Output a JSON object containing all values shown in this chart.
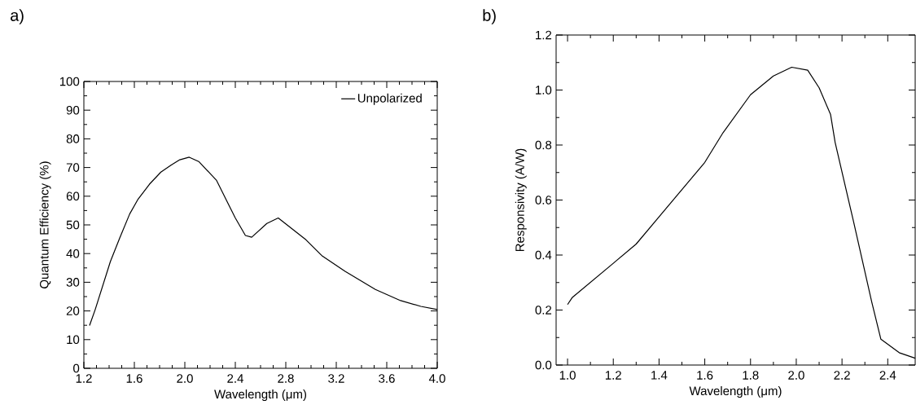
{
  "chart_data": [
    {
      "type": "line",
      "xlabel": "Wavelength (μm)",
      "ylabel": "Quantum Efficiency (%)",
      "annotations": [
        "a)"
      ],
      "legend": "top right",
      "xlim": [
        1.2,
        4.0
      ],
      "ylim": [
        0,
        100
      ],
      "xticks": [
        {
          "value": 1.2,
          "label": "1.2"
        },
        {
          "value": 1.6,
          "label": "1.6"
        },
        {
          "value": 2.0,
          "label": "2.0"
        },
        {
          "value": 2.4,
          "label": "2.4"
        },
        {
          "value": 2.8,
          "label": "2.8"
        },
        {
          "value": 3.2,
          "label": "3.2"
        },
        {
          "value": 3.6,
          "label": "3.6"
        },
        {
          "value": 4.0,
          "label": "4.0"
        }
      ],
      "yticks": [
        0,
        10,
        20,
        30,
        40,
        50,
        60,
        70,
        80,
        90,
        100
      ],
      "series": [
        {
          "name": "Unpolarized",
          "color": "#000000",
          "x": [
            1.245,
            1.29,
            1.41,
            1.485,
            1.563,
            1.63,
            1.72,
            1.81,
            1.89,
            1.96,
            2.035,
            2.11,
            2.25,
            2.4,
            2.48,
            2.53,
            2.65,
            2.74,
            2.96,
            3.09,
            3.27,
            3.51,
            3.71,
            3.87,
            4.0
          ],
          "values": [
            14.9,
            20.5,
            37.2,
            45.5,
            53.8,
            59,
            64.2,
            68.4,
            70.8,
            72.7,
            73.6,
            72.1,
            65.6,
            52.4,
            46.3,
            45.7,
            50.5,
            52.4,
            44.8,
            39.1,
            33.8,
            27.5,
            23.6,
            21.6,
            20.5
          ]
        }
      ]
    },
    {
      "type": "line",
      "xlabel": "Wavelength (μm)",
      "ylabel": "Responsivity (A/W)",
      "annotations": [
        "b)"
      ],
      "xlim": [
        0.95,
        2.52
      ],
      "ylim": [
        0,
        1.2
      ],
      "xticks": [
        {
          "value": 1.0,
          "label": "1.0"
        },
        {
          "value": 1.2,
          "label": "1.2"
        },
        {
          "value": 1.4,
          "label": "1.4"
        },
        {
          "value": 1.6,
          "label": "1.6"
        },
        {
          "value": 1.8,
          "label": "1.8"
        },
        {
          "value": 2.0,
          "label": "2.0"
        },
        {
          "value": 2.2,
          "label": "2.2"
        },
        {
          "value": 2.4,
          "label": "2.4"
        }
      ],
      "yticks": [
        {
          "value": 0,
          "label": "0.0"
        },
        {
          "value": 0.2,
          "label": "0.2"
        },
        {
          "value": 0.4,
          "label": "0.4"
        },
        {
          "value": 0.6,
          "label": "0.6"
        },
        {
          "value": 0.8,
          "label": "0.8"
        },
        {
          "value": 1.0,
          "label": "1.0"
        },
        {
          "value": 1.2,
          "label": "1.2"
        }
      ],
      "series": [
        {
          "color": "#000000",
          "x": [
            1.0,
            1.02,
            1.2,
            1.3,
            1.394,
            1.6,
            1.68,
            1.8,
            1.9,
            1.98,
            2.05,
            2.1,
            2.15,
            2.17,
            2.25,
            2.33,
            2.37,
            2.45,
            2.52
          ],
          "values": [
            0.22,
            0.245,
            0.37,
            0.44,
            0.533,
            0.737,
            0.845,
            0.983,
            1.051,
            1.083,
            1.072,
            1.008,
            0.911,
            0.809,
            0.523,
            0.229,
            0.094,
            0.045,
            0.025
          ]
        }
      ]
    }
  ]
}
